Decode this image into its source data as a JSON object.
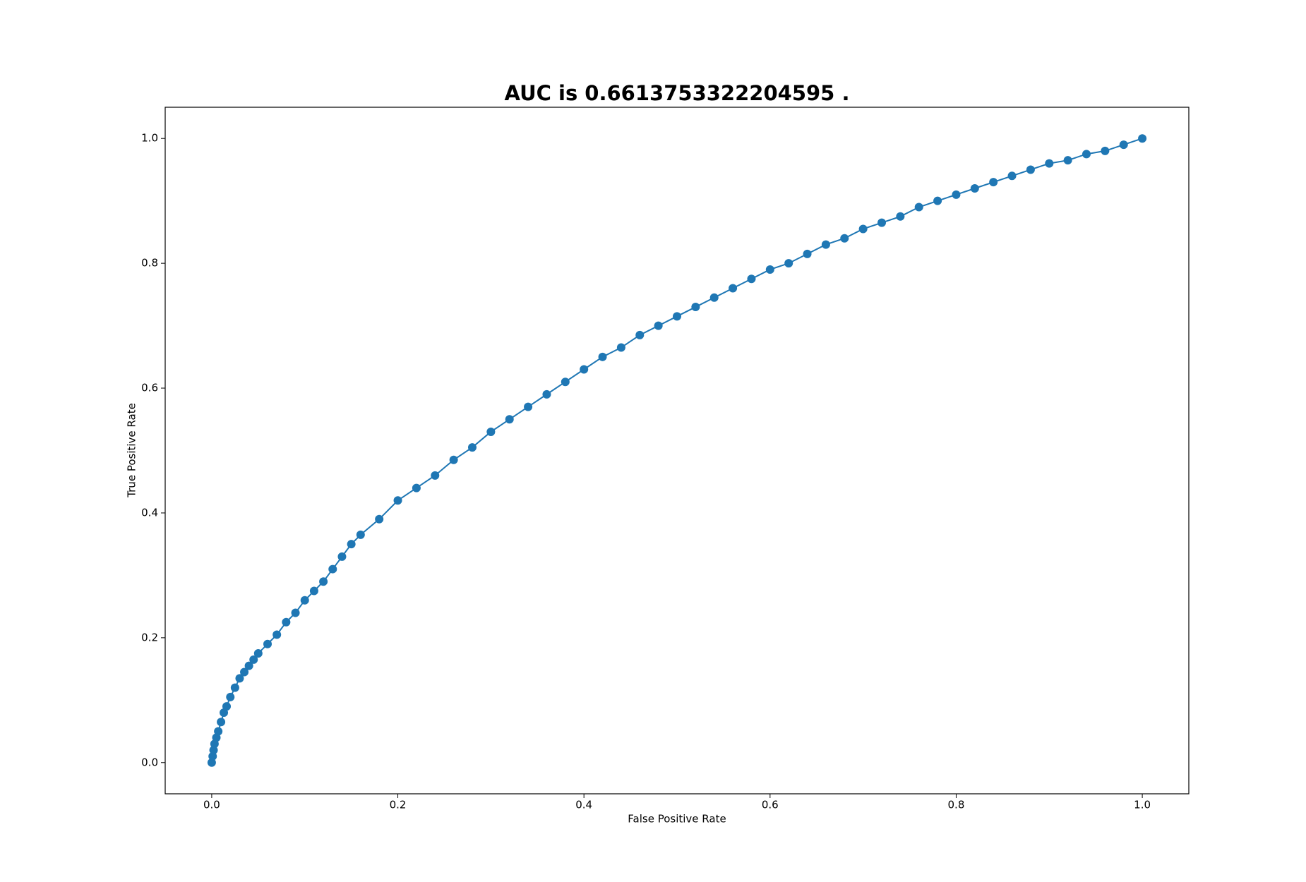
{
  "chart_data": {
    "type": "line",
    "title": "AUC is 0.6613753322204595 .",
    "x_label": "False Positive Rate",
    "y_label": "True Positive Rate",
    "color": "#1f77b4",
    "marker": "o",
    "xlim": [
      -0.05,
      1.05
    ],
    "ylim": [
      -0.05,
      1.05
    ],
    "xticks": [
      {
        "value": 0,
        "label": "0.0"
      },
      0.2,
      0.4,
      0.6,
      0.8,
      {
        "value": 1,
        "label": "1.0"
      }
    ],
    "yticks": [
      {
        "value": 0,
        "label": "0.0"
      },
      0.2,
      0.4,
      0.6,
      0.8,
      {
        "value": 1,
        "label": "1.0"
      }
    ],
    "x": [
      0,
      0.001,
      0.002,
      0.003,
      0.005,
      0.007,
      0.01,
      0.013,
      0.016,
      0.02,
      0.025,
      0.03,
      0.035,
      0.04,
      0.045,
      0.05,
      0.06,
      0.07,
      0.08,
      0.09,
      0.1,
      0.11,
      0.12,
      0.13,
      0.14,
      0.15,
      0.16,
      0.18,
      0.2,
      0.22,
      0.24,
      0.26,
      0.28,
      0.3,
      0.32,
      0.34,
      0.36,
      0.38,
      0.4,
      0.42,
      0.44,
      0.46,
      0.48,
      0.5,
      0.52,
      0.54,
      0.56,
      0.58,
      0.6,
      0.62,
      0.64,
      0.66,
      0.68,
      0.7,
      0.72,
      0.74,
      0.76,
      0.78,
      0.8,
      0.82,
      0.84,
      0.86,
      0.88,
      0.9,
      0.92,
      0.94,
      0.96,
      0.98,
      1.0
    ],
    "values": [
      0,
      0.01,
      0.02,
      0.03,
      0.04,
      0.05,
      0.065,
      0.08,
      0.09,
      0.105,
      0.12,
      0.135,
      0.145,
      0.155,
      0.165,
      0.175,
      0.19,
      0.205,
      0.225,
      0.24,
      0.26,
      0.275,
      0.29,
      0.31,
      0.33,
      0.35,
      0.365,
      0.39,
      0.42,
      0.44,
      0.46,
      0.485,
      0.505,
      0.53,
      0.55,
      0.57,
      0.59,
      0.61,
      0.63,
      0.65,
      0.665,
      0.685,
      0.7,
      0.715,
      0.73,
      0.745,
      0.76,
      0.775,
      0.79,
      0.8,
      0.815,
      0.83,
      0.84,
      0.855,
      0.865,
      0.875,
      0.89,
      0.9,
      0.91,
      0.92,
      0.93,
      0.94,
      0.95,
      0.96,
      0.965,
      0.975,
      0.98,
      0.99,
      1.0
    ]
  }
}
